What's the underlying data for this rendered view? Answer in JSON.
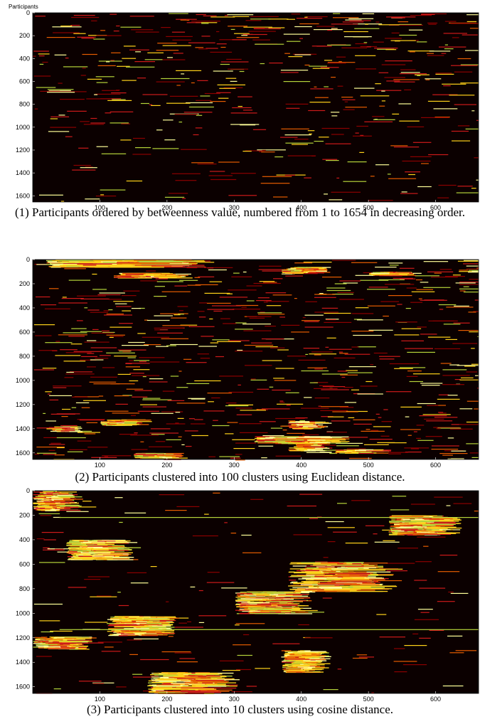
{
  "y_axis_label": "Participants",
  "colors": {
    "background": "#0b0000",
    "dark_red": "#8b0000",
    "red": "#cc1a1a",
    "orange": "#e65c00",
    "yellow": "#ffd21a",
    "pale_yellow": "#ffff99",
    "green_yellow": "#b5d33a"
  },
  "chart_data": [
    {
      "type": "heatmap",
      "caption": "(1) Participants ordered by betweenness value, numbered from 1 to 1654 in decreasing order.",
      "xlim": [
        0,
        664
      ],
      "ylim": [
        1654,
        0
      ],
      "x_ticks": [
        100,
        200,
        300,
        400,
        500,
        600
      ],
      "y_ticks": [
        0,
        200,
        400,
        600,
        800,
        1000,
        1200,
        1400,
        1600
      ],
      "density_profile": [
        [
          0,
          1.0
        ],
        [
          150,
          0.8
        ],
        [
          500,
          0.55
        ],
        [
          900,
          0.4
        ],
        [
          1300,
          0.3
        ],
        [
          1654,
          0.25
        ]
      ],
      "clusters": []
    },
    {
      "type": "heatmap",
      "caption": "(2) Participants clustered into 100 clusters using Euclidean distance.",
      "xlim": [
        0,
        664
      ],
      "ylim": [
        1654,
        0
      ],
      "x_ticks": [
        100,
        200,
        300,
        400,
        500,
        600
      ],
      "y_ticks": [
        0,
        200,
        400,
        600,
        800,
        1000,
        1200,
        1400,
        1600
      ],
      "density_profile": [
        [
          0,
          0.7
        ],
        [
          1654,
          0.7
        ]
      ],
      "clusters": [
        {
          "x": [
            20,
            220
          ],
          "y": [
            0,
            60
          ]
        },
        {
          "x": [
            370,
            430
          ],
          "y": [
            60,
            110
          ]
        },
        {
          "x": [
            500,
            560
          ],
          "y": [
            100,
            130
          ]
        },
        {
          "x": [
            120,
            220
          ],
          "y": [
            110,
            150
          ]
        },
        {
          "x": [
            100,
            160
          ],
          "y": [
            1320,
            1370
          ]
        },
        {
          "x": [
            380,
            430
          ],
          "y": [
            1330,
            1400
          ]
        },
        {
          "x": [
            20,
            60
          ],
          "y": [
            1380,
            1420
          ]
        },
        {
          "x": [
            330,
            450
          ],
          "y": [
            1460,
            1520
          ]
        },
        {
          "x": [
            380,
            430
          ],
          "y": [
            1500,
            1580
          ]
        },
        {
          "x": [
            450,
            520
          ],
          "y": [
            1570,
            1600
          ]
        },
        {
          "x": [
            150,
            220
          ],
          "y": [
            1600,
            1640
          ]
        }
      ]
    },
    {
      "type": "heatmap",
      "caption": "(3) Participants clustered into 10 clusters using cosine distance.",
      "xlim": [
        0,
        664
      ],
      "ylim": [
        1654,
        0
      ],
      "x_ticks": [
        100,
        200,
        300,
        400,
        500,
        600
      ],
      "y_ticks": [
        0,
        200,
        400,
        600,
        800,
        1000,
        1200,
        1400,
        1600
      ],
      "density_profile": [
        [
          0,
          0.15
        ],
        [
          1654,
          0.15
        ]
      ],
      "clusters": [
        {
          "x": [
            0,
            60
          ],
          "y": [
            0,
            160
          ]
        },
        {
          "x": [
            530,
            620
          ],
          "y": [
            200,
            360
          ]
        },
        {
          "x": [
            50,
            140
          ],
          "y": [
            400,
            560
          ]
        },
        {
          "x": [
            380,
            520
          ],
          "y": [
            580,
            820
          ]
        },
        {
          "x": [
            300,
            400
          ],
          "y": [
            820,
            1000
          ]
        },
        {
          "x": [
            110,
            200
          ],
          "y": [
            1020,
            1180
          ]
        },
        {
          "x": [
            0,
            80
          ],
          "y": [
            1190,
            1290
          ]
        },
        {
          "x": [
            370,
            430
          ],
          "y": [
            1300,
            1480
          ]
        },
        {
          "x": [
            170,
            280
          ],
          "y": [
            1480,
            1654
          ]
        }
      ],
      "full_lines": [
        215,
        1130
      ]
    }
  ]
}
